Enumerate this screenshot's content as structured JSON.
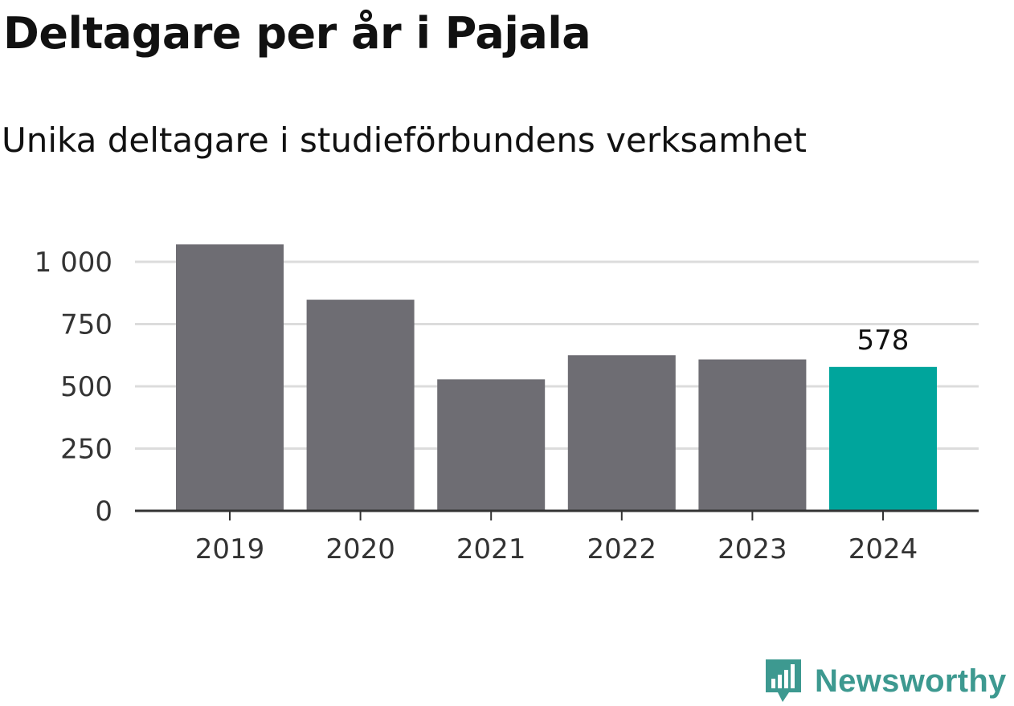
{
  "title": "Deltagare per år i Pajala",
  "subtitle": "Unika deltagare i studieförbundens verksamhet",
  "brand": "Newsworthy",
  "colors": {
    "bar": "#6e6d73",
    "highlight": "#00a59c",
    "grid": "#dcdcdc",
    "axis": "#333333",
    "brand": "#3d9990"
  },
  "chart_data": {
    "type": "bar",
    "categories": [
      "2019",
      "2020",
      "2021",
      "2022",
      "2023",
      "2024"
    ],
    "values": [
      1070,
      848,
      528,
      625,
      608,
      578
    ],
    "highlight_index": 5,
    "data_labels": [
      null,
      null,
      null,
      null,
      null,
      "578"
    ],
    "ylim": [
      0,
      1000
    ],
    "yticks": [
      0,
      250,
      500,
      750,
      1000
    ],
    "ytick_labels": [
      "0",
      "250",
      "500",
      "750",
      "1 000"
    ],
    "grid": true,
    "xlabel": "",
    "ylabel": ""
  }
}
